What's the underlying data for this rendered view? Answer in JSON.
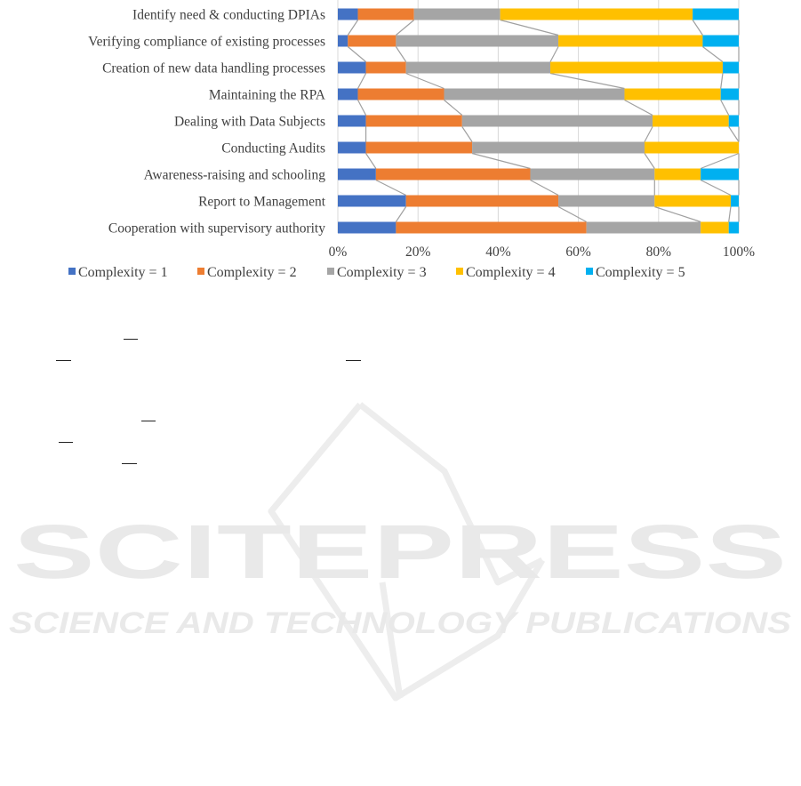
{
  "chart_data": {
    "type": "bar",
    "orientation": "horizontal",
    "stacked": "percent",
    "categories": [
      "Identify need & conducting DPIAs",
      "Verifying compliance of existing processes",
      "Creation of new data handling processes",
      "Maintaining the RPA",
      "Dealing with Data Subjects",
      "Conducting Audits",
      "Awareness-raising and schooling",
      "Report to Management",
      "Cooperation with supervisory authority"
    ],
    "series": [
      {
        "name": "Complexity = 1",
        "color": "#4472C4",
        "values": [
          5,
          2.5,
          7,
          5,
          7,
          7,
          9.5,
          17,
          14.5
        ]
      },
      {
        "name": "Complexity = 2",
        "color": "#ED7D31",
        "values": [
          14,
          12,
          10,
          21.5,
          24,
          26.5,
          38.5,
          38,
          47.5
        ]
      },
      {
        "name": "Complexity = 3",
        "color": "#A5A5A5",
        "values": [
          21.5,
          40.5,
          36,
          45,
          47.5,
          43,
          31,
          24,
          28.5
        ]
      },
      {
        "name": "Complexity = 4",
        "color": "#FFC000",
        "values": [
          48,
          36,
          43,
          24,
          19,
          23.5,
          11.5,
          19,
          7
        ]
      },
      {
        "name": "Complexity = 5",
        "color": "#00B0F0",
        "values": [
          11.5,
          9,
          4,
          4.5,
          2.5,
          0,
          9.5,
          2,
          2.5
        ]
      }
    ],
    "x_ticks": [
      "0%",
      "20%",
      "40%",
      "60%",
      "80%",
      "100%"
    ],
    "xlim": [
      0,
      100
    ],
    "grid": "vertical",
    "series_lines": true,
    "legend": "bottom"
  },
  "watermark": {
    "title": "SCITEPRESS",
    "subtitle": "SCIENCE AND TECHNOLOGY PUBLICATIONS"
  }
}
